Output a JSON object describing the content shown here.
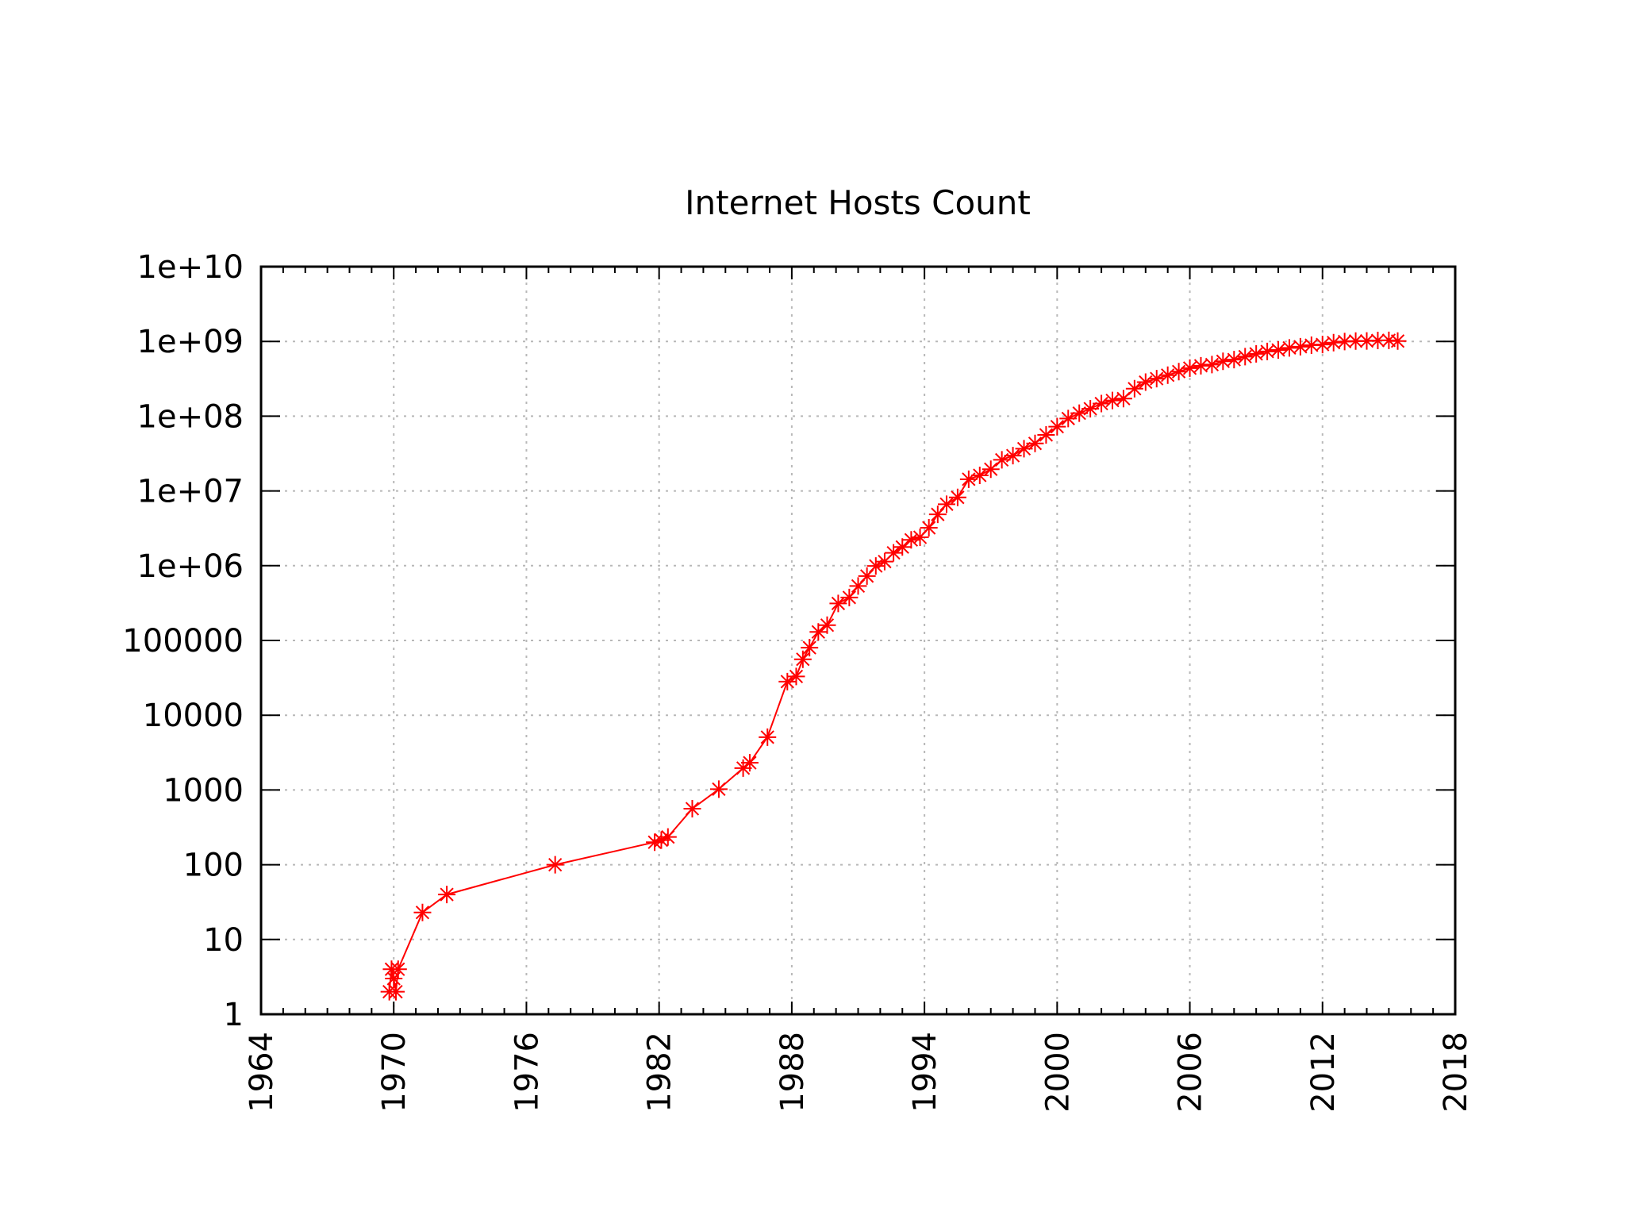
{
  "chart_data": {
    "type": "line",
    "title": "Internet Hosts Count",
    "xlabel": "",
    "ylabel": "",
    "x_axis": {
      "range": [
        1964,
        2018
      ],
      "ticks": [
        1964,
        1970,
        1976,
        1982,
        1988,
        1994,
        2000,
        2006,
        2012,
        2018
      ],
      "tick_labels": [
        "1964",
        "1970",
        "1976",
        "1982",
        "1988",
        "1994",
        "2000",
        "2006",
        "2012",
        "2018"
      ],
      "minor_step": 1
    },
    "y_axis": {
      "scale": "log",
      "range": [
        1,
        10000000000
      ],
      "ticks": [
        1,
        10,
        100,
        1000,
        10000,
        100000,
        1000000,
        10000000,
        100000000,
        1000000000,
        10000000000
      ],
      "tick_labels": [
        "1",
        "10",
        "100",
        "1000",
        "10000",
        "100000",
        "1e+06",
        "1e+07",
        "1e+08",
        "1e+09",
        "1e+10"
      ]
    },
    "grid": true,
    "legend": "none",
    "marker": "asterisk",
    "color": "#ff0000",
    "series": [
      {
        "x": [
          1969.8,
          1969.9,
          1970.0,
          1970.1,
          1970.2,
          1971.3,
          1972.4,
          1977.3,
          1981.8,
          1982.1,
          1982.4,
          1983.5,
          1984.7,
          1985.8,
          1986.1,
          1986.9,
          1987.8,
          1988.2,
          1988.5,
          1988.8,
          1989.2,
          1989.6,
          1990.1,
          1990.6,
          1991.0,
          1991.4,
          1991.8,
          1992.2,
          1992.6,
          1993.0,
          1993.4,
          1993.8,
          1994.2,
          1994.6,
          1995.0,
          1995.5,
          1996.0,
          1996.5,
          1997.0,
          1997.5,
          1998.0,
          1998.5,
          1999.0,
          1999.5,
          2000.0,
          2000.5,
          2001.0,
          2001.5,
          2002.0,
          2002.5,
          2003.0,
          2003.5,
          2004.0,
          2004.5,
          2005.0,
          2005.5,
          2006.0,
          2006.5,
          2007.0,
          2007.5,
          2008.0,
          2008.5,
          2009.0,
          2009.5,
          2010.0,
          2010.5,
          2011.0,
          2011.5,
          2012.0,
          2012.5,
          2013.0,
          2013.5,
          2014.0,
          2014.5,
          2015.0,
          2015.4
        ],
        "y": [
          2,
          4,
          3,
          2,
          4,
          23,
          40,
          100,
          200,
          213,
          235,
          562,
          1024,
          1961,
          2308,
          5089,
          28174,
          33000,
          56000,
          80000,
          130000,
          160000,
          313000,
          376000,
          535000,
          727000,
          992000,
          1136000,
          1486000,
          1776000,
          2217000,
          2400000,
          3212000,
          4852000,
          6642000,
          8200000,
          14352000,
          16146000,
          19540000,
          26053000,
          29670000,
          36739000,
          43230000,
          56218000,
          72398000,
          93047000,
          109574000,
          125888000,
          147344000,
          162128000,
          171638000,
          233101000,
          285139000,
          317646000,
          353284000,
          394991000,
          439286000,
          472000000,
          489774000,
          541677000,
          570938000,
          625226000,
          681064000,
          732740000,
          768913000,
          818374000,
          849869000,
          888239000,
          908585000,
          963518000,
          996230000,
          1010251000,
          1012706000,
          1028729000,
          1033836000,
          1010000000
        ]
      }
    ]
  }
}
